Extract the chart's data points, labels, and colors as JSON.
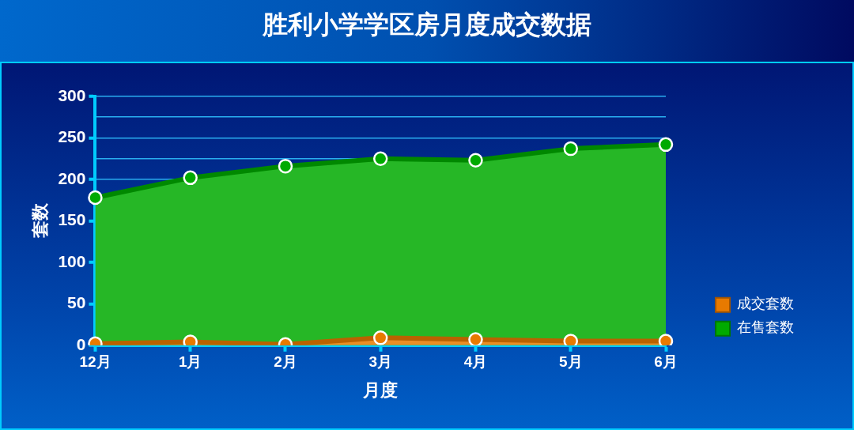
{
  "chart_data": {
    "type": "area",
    "title": "胜利小学学区房月度成交数据",
    "xlabel": "月度",
    "ylabel": "套数",
    "categories": [
      "12月",
      "1月",
      "2月",
      "3月",
      "4月",
      "5月",
      "6月"
    ],
    "series": [
      {
        "name": "成交套数",
        "color": "#e87a00",
        "values": [
          2,
          4,
          1,
          9,
          7,
          5,
          5
        ]
      },
      {
        "name": "在售套数",
        "color": "#00aa00",
        "values": [
          178,
          202,
          216,
          225,
          223,
          237,
          242
        ]
      }
    ],
    "ylim": [
      0,
      300
    ],
    "yticks": [
      0,
      50,
      100,
      150,
      200,
      {
        "value": 225,
        "label": null
      },
      250,
      {
        "value": 275,
        "label": null
      },
      300
    ],
    "grid": "y",
    "legend": "bottom right",
    "marker": "circle"
  }
}
